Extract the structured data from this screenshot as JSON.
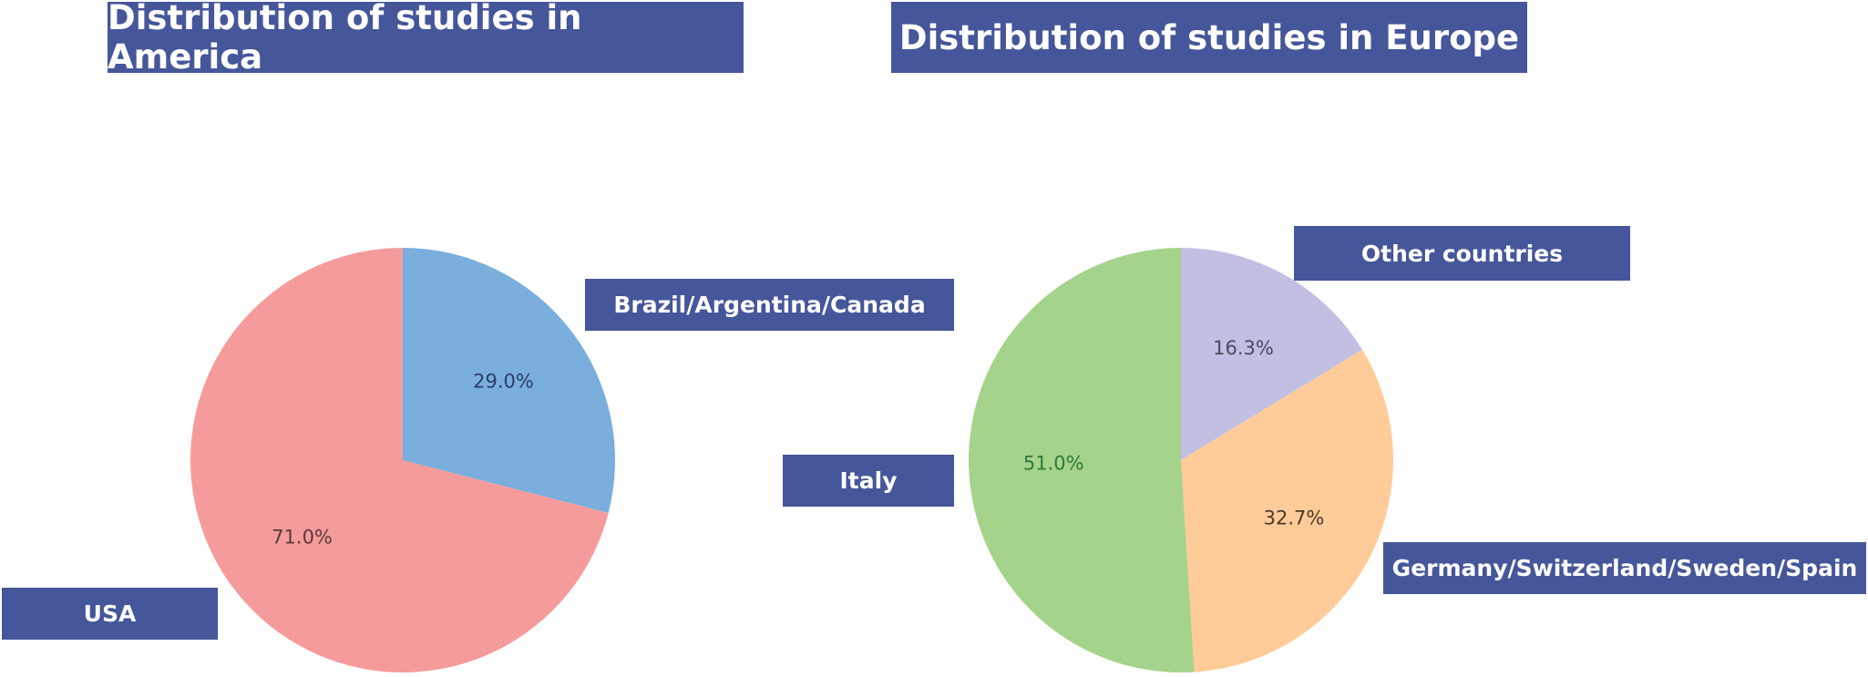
{
  "chart_data": [
    {
      "type": "pie",
      "title": "Distribution of studies in America",
      "labels": [
        "Brazil/Argentina/Canada",
        "USA"
      ],
      "values": [
        29.0,
        71.0
      ],
      "value_labels": [
        "29.0%",
        "71.0%"
      ],
      "colors": [
        "#79aedd",
        "#f59b9b"
      ],
      "label_text_colors": [
        "#2b3f66",
        "#5a3a3a"
      ]
    },
    {
      "type": "pie",
      "title": "Distribution of studies in Europe",
      "labels": [
        "Other countries",
        "Germany/Switzerland/Sweden/Spain",
        "Italy"
      ],
      "values": [
        16.3,
        32.7,
        51.0
      ],
      "value_labels": [
        "16.3%",
        "32.7%",
        "51.0%"
      ],
      "colors": [
        "#c1c0e3",
        "#ffcc99",
        "#a6d38b"
      ],
      "label_text_colors": [
        "#4a4a5e",
        "#4a3a2a",
        "#2e7a3a"
      ]
    }
  ]
}
